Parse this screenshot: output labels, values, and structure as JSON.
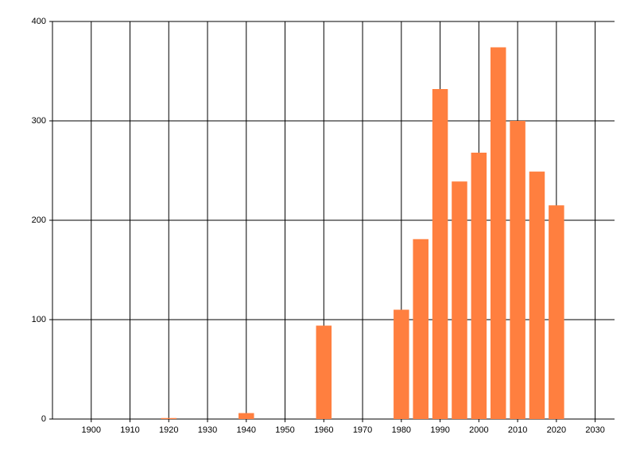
{
  "chart_data": {
    "type": "bar",
    "x": [
      1920,
      1940,
      1960,
      1980,
      1985,
      1990,
      1995,
      2000,
      2005,
      2010,
      2015,
      2020
    ],
    "values": [
      1,
      6,
      94,
      110,
      181,
      332,
      239,
      268,
      374,
      300,
      249,
      215
    ],
    "color": "#ff7f3f",
    "xlim": [
      1890,
      2035
    ],
    "xticks": [
      1900,
      1910,
      1920,
      1930,
      1940,
      1950,
      1960,
      1970,
      1980,
      1990,
      2000,
      2010,
      2020,
      2030
    ],
    "ylim": [
      0,
      400
    ],
    "yticks": [
      0,
      100,
      200,
      300,
      400
    ],
    "grid": true
  }
}
